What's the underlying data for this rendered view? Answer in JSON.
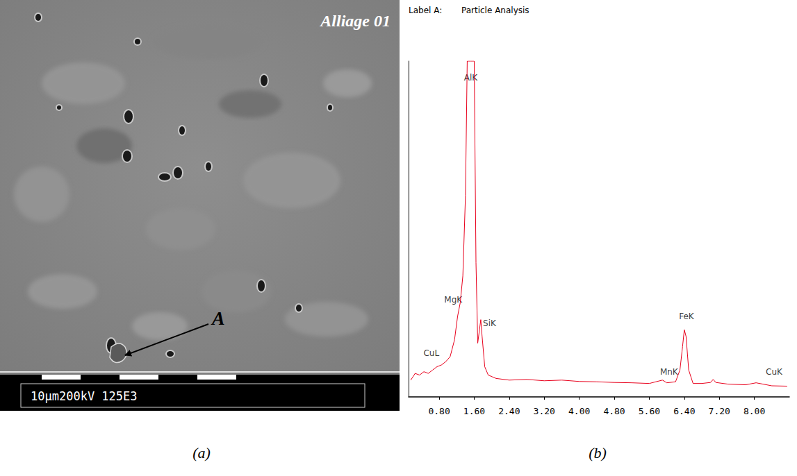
{
  "image": {
    "label": "Alliage 01",
    "marker": "A",
    "scale_bar": "10µm200kV 125E3"
  },
  "captions": [
    "(a)",
    "(b)"
  ],
  "chart_data": {
    "type": "line",
    "title": "Label A:",
    "subtitle": "Particle Analysis",
    "color": "#e8001c",
    "x": [
      0.15,
      0.25,
      0.35,
      0.45,
      0.55,
      0.65,
      0.75,
      0.85,
      0.95,
      1.05,
      1.15,
      1.22,
      1.28,
      1.34,
      1.4,
      1.44,
      1.48,
      1.52,
      1.56,
      1.6,
      1.64,
      1.68,
      1.72,
      1.75,
      1.78,
      1.84,
      1.92,
      2.1,
      2.4,
      2.8,
      3.2,
      3.6,
      4.0,
      4.4,
      4.8,
      5.2,
      5.6,
      5.9,
      6.0,
      6.2,
      6.3,
      6.36,
      6.4,
      6.44,
      6.5,
      6.6,
      6.8,
      7.0,
      7.06,
      7.12,
      7.4,
      7.8,
      8.04,
      8.4,
      8.75
    ],
    "values": [
      5.0,
      7.0,
      6.5,
      7.5,
      7.0,
      8.0,
      9.0,
      9.5,
      10.5,
      12.0,
      17.0,
      24.0,
      28.0,
      36.0,
      60.0,
      100,
      100,
      100,
      100,
      100,
      40.0,
      16.0,
      20.0,
      23.0,
      18.0,
      9.0,
      6.5,
      5.5,
      5.0,
      5.2,
      4.8,
      5.0,
      4.6,
      4.5,
      4.3,
      4.2,
      4.0,
      5.0,
      4.2,
      4.5,
      8.0,
      15.0,
      20.0,
      18.0,
      8.0,
      4.0,
      4.0,
      4.3,
      5.2,
      4.3,
      3.8,
      3.6,
      4.2,
      3.3,
      3.2
    ],
    "xlim": [
      0.1,
      8.8
    ],
    "ylim": [
      0,
      100
    ],
    "xticks": [
      {
        "value": 0.8,
        "label": "0.80"
      },
      {
        "value": 1.6,
        "label": "1.60"
      },
      {
        "value": 2.4,
        "label": "2.40"
      },
      {
        "value": 3.2,
        "label": "3.20"
      },
      {
        "value": 4.0,
        "label": "4.00"
      },
      {
        "value": 4.8,
        "label": "4.80"
      },
      {
        "value": 5.6,
        "label": "5.60"
      },
      {
        "value": 6.4,
        "label": "6.40"
      },
      {
        "value": 7.2,
        "label": "7.20"
      },
      {
        "value": 8.0,
        "label": "8.00"
      }
    ],
    "tick_labels": "x",
    "grid": false,
    "annotations": [
      {
        "text": "AlK",
        "x": 1.52,
        "y": 95
      },
      {
        "text": "MgK",
        "x": 1.12,
        "y": 29
      },
      {
        "text": "CuL",
        "x": 0.62,
        "y": 13
      },
      {
        "text": "SiK",
        "x": 1.95,
        "y": 22
      },
      {
        "text": "MnK",
        "x": 6.05,
        "y": 7.5
      },
      {
        "text": "FeK",
        "x": 6.45,
        "y": 24
      },
      {
        "text": "CuK",
        "x": 8.45,
        "y": 7.5
      }
    ]
  }
}
